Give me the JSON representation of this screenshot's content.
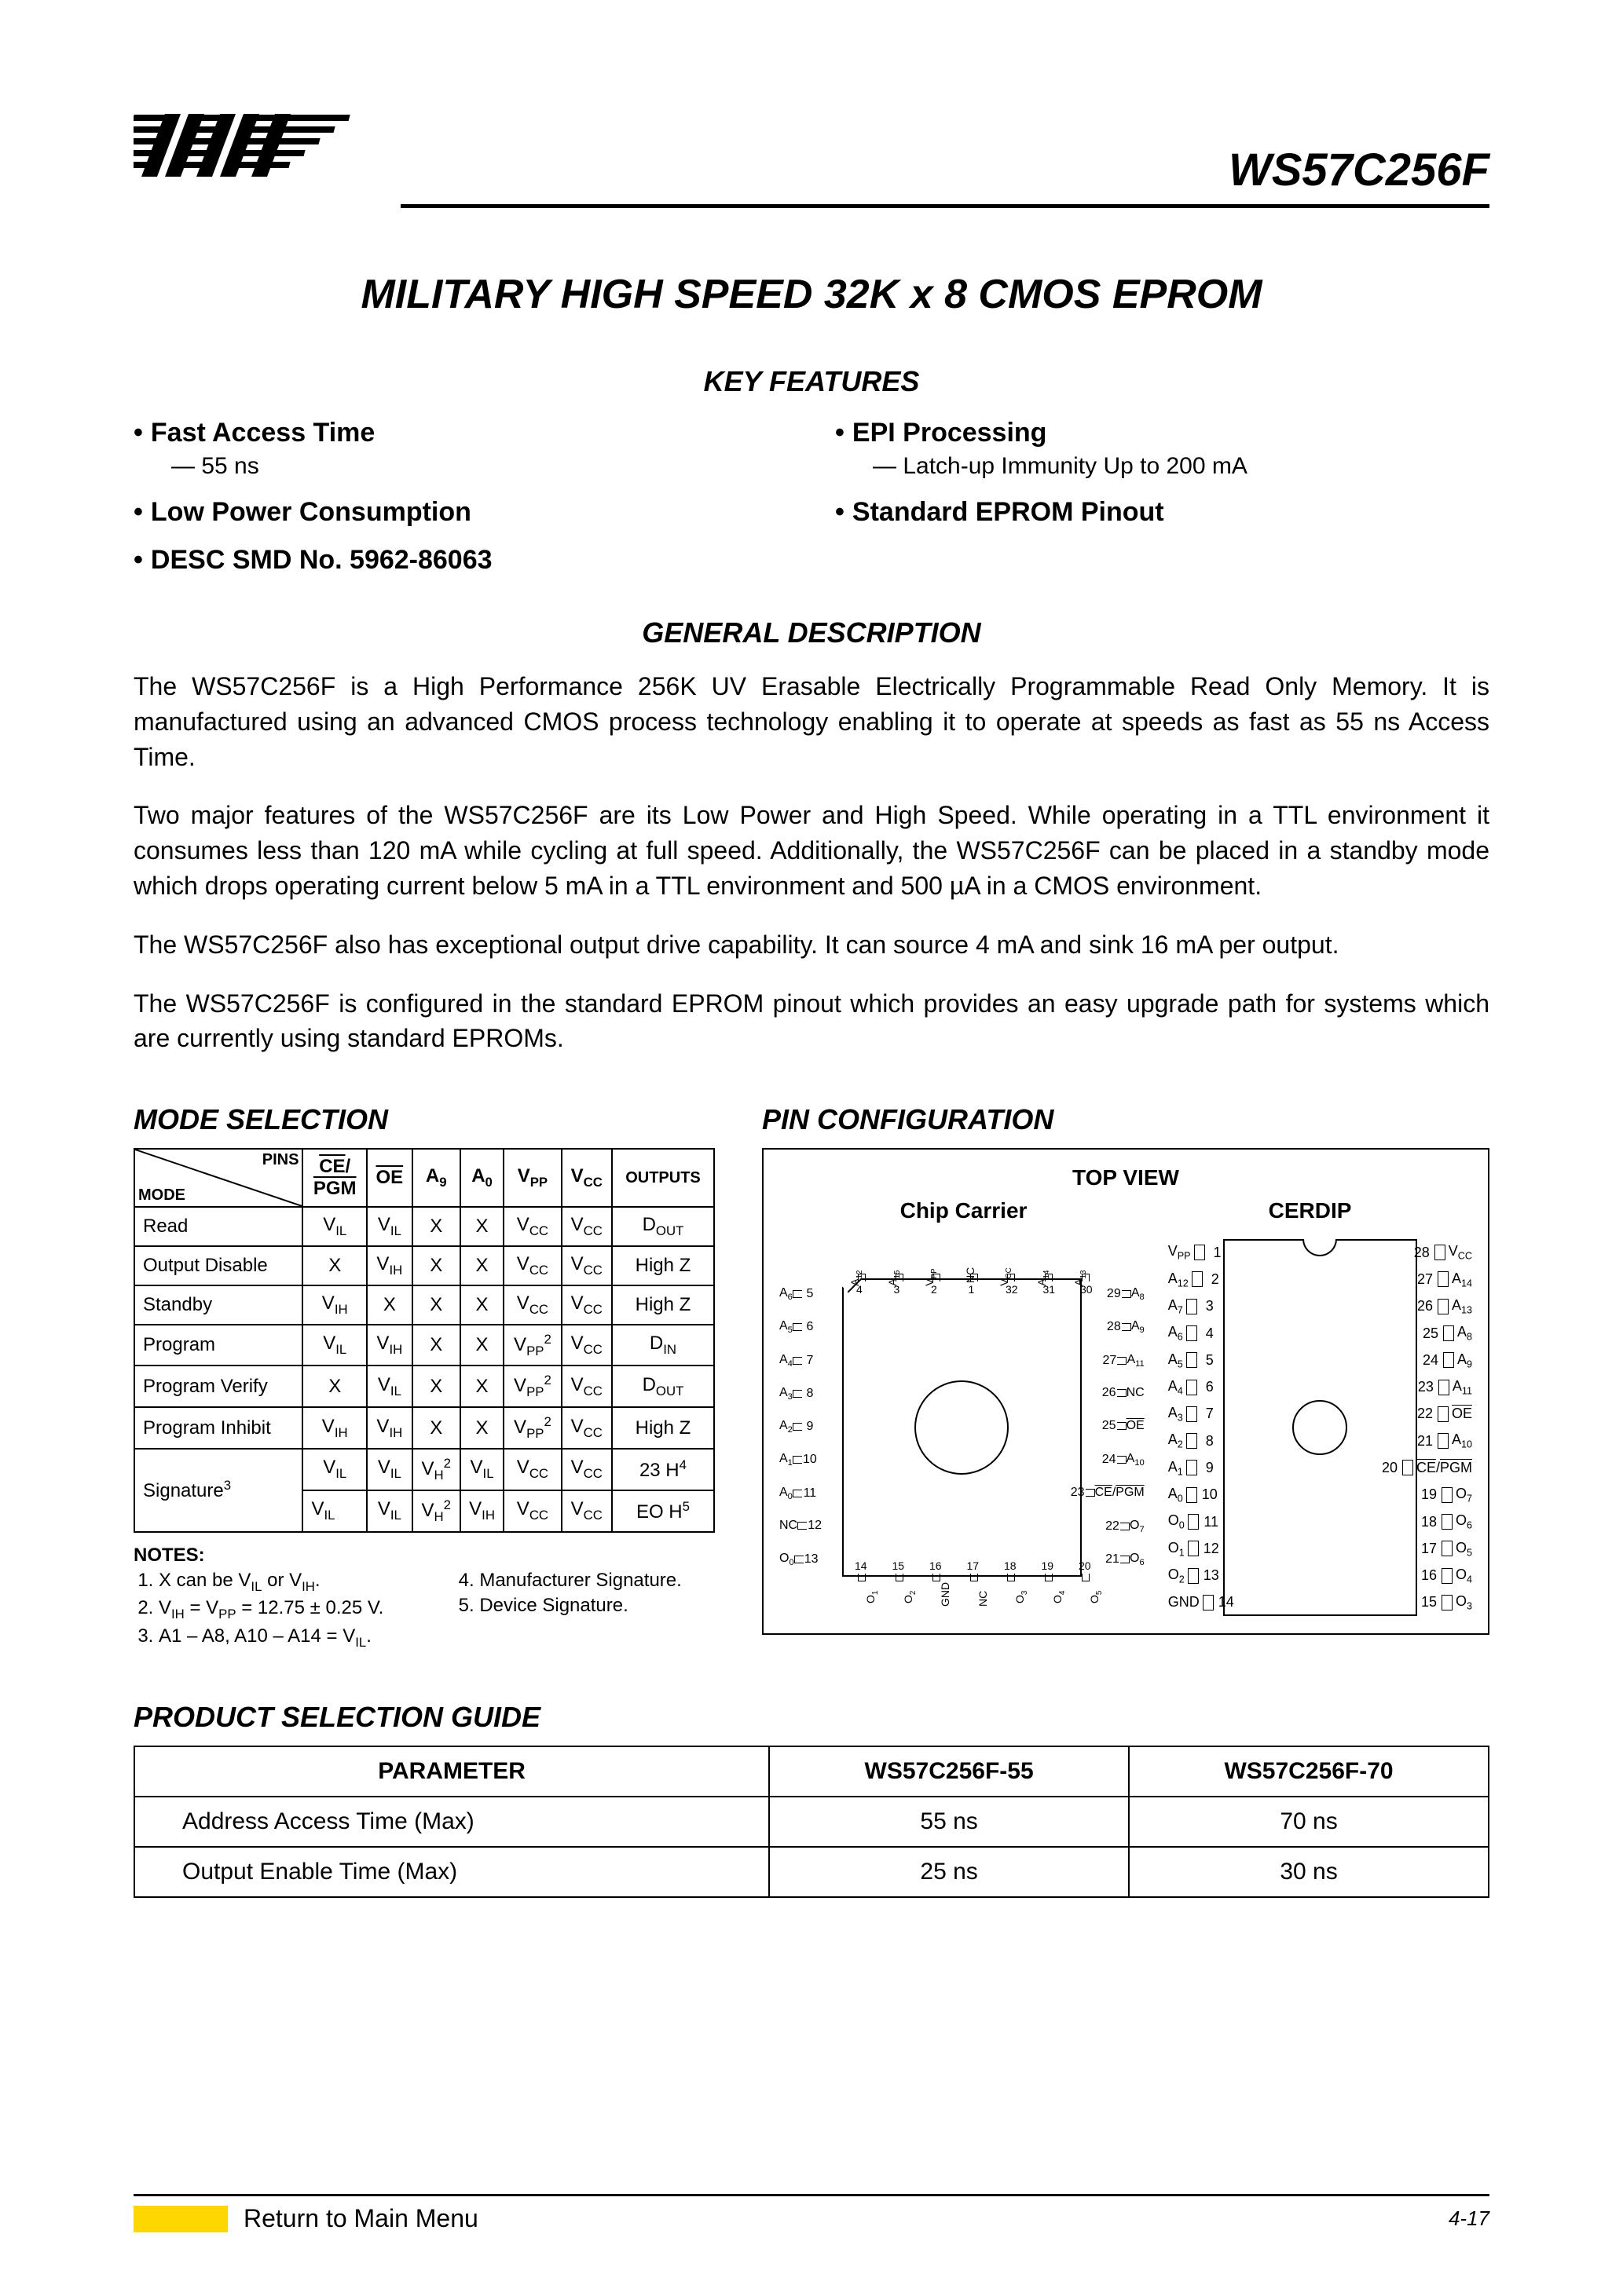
{
  "header": {
    "part_number": "WS57C256F"
  },
  "title": "MILITARY HIGH SPEED 32K x 8 CMOS EPROM",
  "sections": {
    "key_features": "KEY FEATURES",
    "general_description": "GENERAL DESCRIPTION",
    "mode_selection": "MODE SELECTION",
    "pin_configuration": "PIN CONFIGURATION",
    "product_selection_guide": "PRODUCT SELECTION GUIDE"
  },
  "features": {
    "left": [
      {
        "head": "Fast Access Time",
        "sub": "—  55 ns"
      },
      {
        "head": "Low Power Consumption",
        "sub": null
      },
      {
        "head": "DESC SMD No. 5962-86063",
        "sub": null
      }
    ],
    "right": [
      {
        "head": "EPI Processing",
        "sub": "—  Latch-up Immunity Up to 200 mA"
      },
      {
        "head": "Standard EPROM Pinout",
        "sub": null
      }
    ]
  },
  "description": [
    "The WS57C256F is a High Performance 256K UV Erasable Electrically Programmable Read Only Memory. It is manufactured using an advanced CMOS process technology enabling it to operate at speeds as fast as 55 ns Access Time.",
    "Two major features of the WS57C256F are its Low Power and High Speed. While operating in a TTL environment it consumes less than 120 mA while cycling at full speed. Additionally, the WS57C256F can be placed in a standby mode which drops operating current below 5 mA in a TTL environment and 500 µA in a CMOS environment.",
    "The WS57C256F also has exceptional output drive capability. It can source 4 mA and sink 16 mA per output.",
    "The WS57C256F is configured in the standard EPROM pinout which provides an easy upgrade path for systems which are currently using standard EPROMs."
  ],
  "mode_table": {
    "header_diag": {
      "top": "PINS",
      "bottom": "MODE"
    },
    "columns": [
      "CE_PGM",
      "OE",
      "A9",
      "A0",
      "VPP",
      "VCC",
      "OUTPUTS"
    ],
    "rows": [
      {
        "label": "Read",
        "cells": [
          "VIL",
          "VIL",
          "X",
          "X",
          "VCC",
          "VCC",
          "DOUT"
        ]
      },
      {
        "label": "Output Disable",
        "cells": [
          "X",
          "VIH",
          "X",
          "X",
          "VCC",
          "VCC",
          "High Z"
        ]
      },
      {
        "label": "Standby",
        "cells": [
          "VIH",
          "X",
          "X",
          "X",
          "VCC",
          "VCC",
          "High Z"
        ]
      },
      {
        "label": "Program",
        "cells": [
          "VIL",
          "VIH",
          "X",
          "X",
          "VPP2",
          "VCC",
          "DIN"
        ]
      },
      {
        "label": "Program Verify",
        "cells": [
          "X",
          "VIL",
          "X",
          "X",
          "VPP2",
          "VCC",
          "DOUT"
        ]
      },
      {
        "label": "Program Inhibit",
        "cells": [
          "VIH",
          "VIH",
          "X",
          "X",
          "VPP2",
          "VCC",
          "High Z"
        ]
      },
      {
        "label": "Signature3a",
        "cells": [
          "VIL",
          "VIL",
          "VH2",
          "VIL",
          "VCC",
          "VCC",
          "23 H4"
        ]
      },
      {
        "label": "Signature3b",
        "cells": [
          "VIL",
          "VIL",
          "VH2",
          "VIH",
          "VCC",
          "VCC",
          "EO H5"
        ]
      }
    ]
  },
  "notes": {
    "title": "NOTES:",
    "left": [
      "X can be V_IL or V_IH.",
      "V_IH = V_PP = 12.75 ± 0.25 V.",
      "A1 – A8, A10 – A14 = V_IL."
    ],
    "right": [
      "Manufacturer Signature.",
      "Device Signature."
    ]
  },
  "pin_config": {
    "top_view": "TOP VIEW",
    "chip_carrier_label": "Chip Carrier",
    "cerdip_label": "CERDIP",
    "chip_carrier": {
      "top": [
        {
          "n": 4,
          "l": "A12"
        },
        {
          "n": 3,
          "l": "A15"
        },
        {
          "n": 2,
          "l": "VPP"
        },
        {
          "n": 1,
          "l": "NC"
        },
        {
          "n": 32,
          "l": "VCC"
        },
        {
          "n": 31,
          "l": "A14"
        },
        {
          "n": 30,
          "l": "A13"
        }
      ],
      "left": [
        {
          "n": 5,
          "l": "A6"
        },
        {
          "n": 6,
          "l": "A5"
        },
        {
          "n": 7,
          "l": "A4"
        },
        {
          "n": 8,
          "l": "A3"
        },
        {
          "n": 9,
          "l": "A2"
        },
        {
          "n": 10,
          "l": "A1"
        },
        {
          "n": 11,
          "l": "A0"
        },
        {
          "n": 12,
          "l": "NC"
        },
        {
          "n": 13,
          "l": "O0"
        }
      ],
      "right": [
        {
          "n": 29,
          "l": "A8"
        },
        {
          "n": 28,
          "l": "A9"
        },
        {
          "n": 27,
          "l": "A11"
        },
        {
          "n": 26,
          "l": "NC"
        },
        {
          "n": 25,
          "l": "OE"
        },
        {
          "n": 24,
          "l": "A10"
        },
        {
          "n": 23,
          "l": "CE/PGM"
        },
        {
          "n": 22,
          "l": "O7"
        },
        {
          "n": 21,
          "l": "O6"
        }
      ],
      "bottom": [
        {
          "n": 14,
          "l": "O1"
        },
        {
          "n": 15,
          "l": "O2"
        },
        {
          "n": 16,
          "l": "GND"
        },
        {
          "n": 17,
          "l": "NC"
        },
        {
          "n": 18,
          "l": "O3"
        },
        {
          "n": 19,
          "l": "O4"
        },
        {
          "n": 20,
          "l": "O5"
        }
      ]
    },
    "cerdip": {
      "left": [
        {
          "n": 1,
          "l": "VPP"
        },
        {
          "n": 2,
          "l": "A12"
        },
        {
          "n": 3,
          "l": "A7"
        },
        {
          "n": 4,
          "l": "A6"
        },
        {
          "n": 5,
          "l": "A5"
        },
        {
          "n": 6,
          "l": "A4"
        },
        {
          "n": 7,
          "l": "A3"
        },
        {
          "n": 8,
          "l": "A2"
        },
        {
          "n": 9,
          "l": "A1"
        },
        {
          "n": 10,
          "l": "A0"
        },
        {
          "n": 11,
          "l": "O0"
        },
        {
          "n": 12,
          "l": "O1"
        },
        {
          "n": 13,
          "l": "O2"
        },
        {
          "n": 14,
          "l": "GND"
        }
      ],
      "right": [
        {
          "n": 28,
          "l": "VCC"
        },
        {
          "n": 27,
          "l": "A14"
        },
        {
          "n": 26,
          "l": "A13"
        },
        {
          "n": 25,
          "l": "A8"
        },
        {
          "n": 24,
          "l": "A9"
        },
        {
          "n": 23,
          "l": "A11"
        },
        {
          "n": 22,
          "l": "OE"
        },
        {
          "n": 21,
          "l": "A10"
        },
        {
          "n": 20,
          "l": "CE/PGM"
        },
        {
          "n": 19,
          "l": "O7"
        },
        {
          "n": 18,
          "l": "O6"
        },
        {
          "n": 17,
          "l": "O5"
        },
        {
          "n": 16,
          "l": "O4"
        },
        {
          "n": 15,
          "l": "O3"
        }
      ]
    }
  },
  "psg": {
    "columns": [
      "PARAMETER",
      "WS57C256F-55",
      "WS57C256F-70"
    ],
    "rows": [
      [
        "Address Access Time (Max)",
        "55 ns",
        "70 ns"
      ],
      [
        "Output Enable Time (Max)",
        "25 ns",
        "30 ns"
      ]
    ]
  },
  "footer": {
    "link_text": "Return to Main Menu",
    "page_number": "4-17"
  },
  "style": {
    "text_color": "#000000",
    "bg_color": "#ffffff",
    "highlight_color": "#ffd700"
  }
}
